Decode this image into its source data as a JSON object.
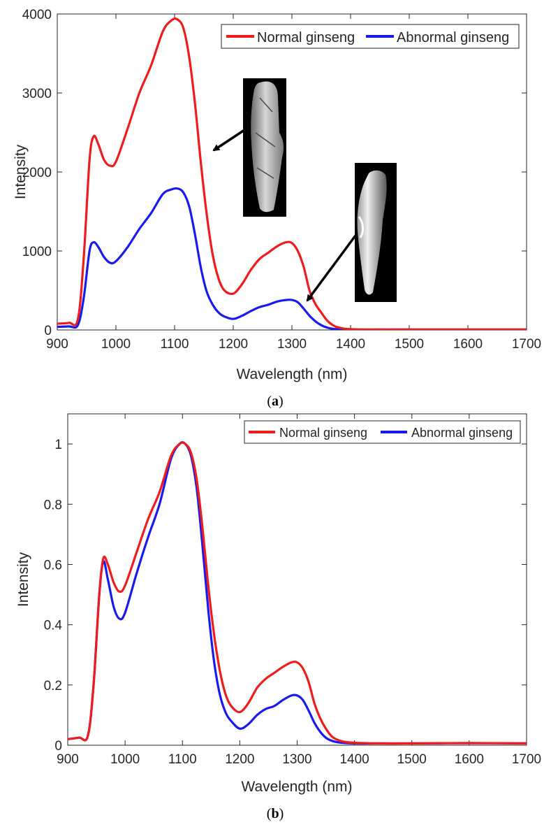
{
  "chart_data": [
    {
      "type": "line",
      "panel_label": "a",
      "xlabel": "Wavelength (nm)",
      "ylabel": "Intensity",
      "xlim": [
        900,
        1700
      ],
      "ylim": [
        0,
        4000
      ],
      "xticks": [
        900,
        1000,
        1100,
        1200,
        1300,
        1400,
        1500,
        1600,
        1700
      ],
      "yticks": [
        0,
        1000,
        2000,
        3000,
        4000
      ],
      "legend_position": "top-right",
      "legend_layout": "horizontal",
      "insets": [
        "normal-ginseng-root-image",
        "abnormal-ginseng-root-image"
      ],
      "series": [
        {
          "name": "Normal ginseng",
          "color": "#ee1c1c",
          "x": [
            900,
            920,
            935,
            945,
            955,
            962,
            970,
            980,
            990,
            1000,
            1020,
            1040,
            1060,
            1080,
            1095,
            1105,
            1115,
            1125,
            1135,
            1145,
            1155,
            1165,
            1175,
            1185,
            1200,
            1215,
            1230,
            1245,
            1260,
            1275,
            1290,
            1300,
            1310,
            1320,
            1330,
            1340,
            1350,
            1360,
            1370,
            1380,
            1400,
            1450,
            1500,
            1600,
            1700
          ],
          "y": [
            80,
            90,
            130,
            900,
            2150,
            2450,
            2350,
            2150,
            2080,
            2130,
            2550,
            3000,
            3350,
            3780,
            3920,
            3930,
            3820,
            3450,
            2850,
            2100,
            1450,
            950,
            650,
            500,
            460,
            580,
            760,
            900,
            980,
            1060,
            1110,
            1100,
            1000,
            800,
            500,
            330,
            220,
            120,
            60,
            30,
            10,
            5,
            5,
            5,
            5
          ]
        },
        {
          "name": "Abnormal ginseng",
          "color": "#1a1aee",
          "x": [
            900,
            920,
            935,
            945,
            955,
            962,
            970,
            980,
            990,
            1000,
            1020,
            1040,
            1060,
            1080,
            1095,
            1105,
            1115,
            1125,
            1135,
            1145,
            1155,
            1165,
            1175,
            1185,
            1200,
            1215,
            1230,
            1245,
            1260,
            1275,
            1290,
            1300,
            1310,
            1320,
            1330,
            1340,
            1350,
            1360,
            1370,
            1380,
            1400,
            1450,
            1500,
            1600,
            1700
          ],
          "y": [
            40,
            45,
            60,
            400,
            1000,
            1110,
            1050,
            920,
            850,
            870,
            1050,
            1280,
            1480,
            1720,
            1780,
            1790,
            1740,
            1560,
            1200,
            780,
            480,
            320,
            220,
            170,
            140,
            180,
            240,
            290,
            320,
            360,
            380,
            380,
            350,
            270,
            180,
            110,
            60,
            30,
            15,
            8,
            5,
            5,
            5,
            5,
            5
          ]
        }
      ]
    },
    {
      "type": "line",
      "panel_label": "b",
      "xlabel": "Wavelength (nm)",
      "ylabel": "Intensity",
      "xlim": [
        900,
        1700
      ],
      "ylim": [
        0,
        1.1
      ],
      "xticks": [
        900,
        1000,
        1100,
        1200,
        1300,
        1400,
        1500,
        1600,
        1700
      ],
      "yticks": [
        0,
        0.2,
        0.4,
        0.6,
        0.8,
        1
      ],
      "legend_position": "top-right",
      "legend_layout": "horizontal",
      "series": [
        {
          "name": "Normal ginseng",
          "color": "#ee1c1c",
          "x": [
            900,
            920,
            935,
            945,
            955,
            962,
            970,
            980,
            990,
            1000,
            1020,
            1040,
            1060,
            1080,
            1095,
            1105,
            1115,
            1125,
            1135,
            1145,
            1155,
            1165,
            1175,
            1185,
            1200,
            1215,
            1230,
            1245,
            1260,
            1275,
            1290,
            1300,
            1310,
            1320,
            1330,
            1340,
            1350,
            1360,
            1370,
            1380,
            1400,
            1450,
            1500,
            1600,
            1700
          ],
          "y": [
            0.02,
            0.025,
            0.03,
            0.2,
            0.5,
            0.62,
            0.6,
            0.54,
            0.51,
            0.53,
            0.64,
            0.75,
            0.84,
            0.96,
            1.0,
            1.0,
            0.97,
            0.88,
            0.72,
            0.53,
            0.37,
            0.25,
            0.17,
            0.13,
            0.11,
            0.14,
            0.19,
            0.22,
            0.24,
            0.26,
            0.275,
            0.275,
            0.255,
            0.21,
            0.14,
            0.09,
            0.055,
            0.03,
            0.018,
            0.012,
            0.008,
            0.006,
            0.006,
            0.007,
            0.006
          ]
        },
        {
          "name": "Abnormal ginseng",
          "color": "#1a1aee",
          "x": [
            900,
            920,
            935,
            945,
            955,
            962,
            970,
            980,
            990,
            1000,
            1020,
            1040,
            1060,
            1080,
            1095,
            1105,
            1115,
            1125,
            1135,
            1145,
            1155,
            1165,
            1175,
            1185,
            1200,
            1215,
            1230,
            1245,
            1260,
            1275,
            1290,
            1300,
            1310,
            1320,
            1330,
            1340,
            1350,
            1360,
            1370,
            1380,
            1400,
            1450,
            1500,
            1600,
            1700
          ],
          "y": [
            0.02,
            0.025,
            0.03,
            0.2,
            0.5,
            0.61,
            0.55,
            0.46,
            0.42,
            0.44,
            0.57,
            0.69,
            0.8,
            0.95,
            1.0,
            1.0,
            0.96,
            0.85,
            0.66,
            0.45,
            0.28,
            0.17,
            0.11,
            0.08,
            0.055,
            0.07,
            0.1,
            0.12,
            0.13,
            0.15,
            0.165,
            0.165,
            0.15,
            0.115,
            0.075,
            0.045,
            0.025,
            0.015,
            0.01,
            0.008,
            0.006,
            0.006,
            0.006,
            0.007,
            0.006
          ]
        }
      ]
    }
  ]
}
